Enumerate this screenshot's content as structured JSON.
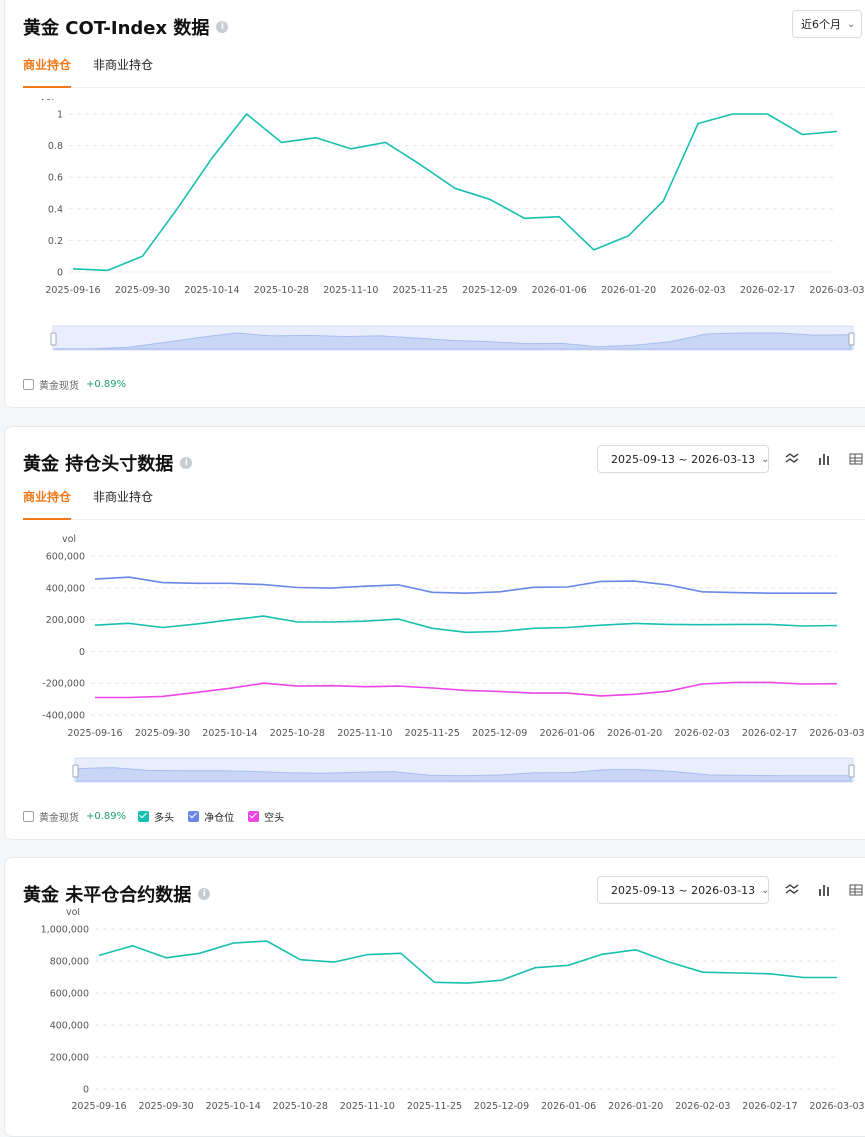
{
  "colors": {
    "long": "#17c0b0",
    "net": "#6a87e8",
    "short": "#ee44e8",
    "accent": "#f07a1a",
    "up": "#1aa36b"
  },
  "card1": {
    "title": "黄金 COT-Index 数据",
    "period_label": "近6个月",
    "tabs": [
      "商业持仓",
      "非商业持仓"
    ],
    "active_tab": 0,
    "legend": {
      "spot_label": "黄金现货",
      "spot_change": "+0.89%"
    }
  },
  "card2": {
    "title": "黄金 持仓头寸数据",
    "date_range": "2025-09-13 ~ 2026-03-13",
    "tabs": [
      "商业持仓",
      "非商业持仓"
    ],
    "active_tab": 0,
    "toolbar": [
      "line-chart-icon",
      "bar-chart-icon",
      "table-icon"
    ],
    "legend": {
      "spot_label": "黄金现货",
      "spot_change": "+0.89%",
      "series": [
        "多头",
        "净仓位",
        "空头"
      ]
    }
  },
  "card3": {
    "title": "黄金 未平仓合约数据",
    "date_range": "2025-09-13 ~ 2026-03-13",
    "toolbar": [
      "line-chart-icon",
      "bar-chart-icon",
      "table-icon"
    ]
  },
  "chart_data": [
    {
      "type": "line",
      "ylabel": "vol",
      "ylim": [
        0,
        1
      ],
      "yticks": [
        "0",
        "0.2",
        "0.4",
        "0.6",
        "0.8",
        "1"
      ],
      "x_ticks": [
        "2025-09-16",
        "2025-09-30",
        "2025-10-14",
        "2025-10-28",
        "2025-11-10",
        "2025-11-25",
        "2025-12-09",
        "2026-01-06",
        "2026-01-20",
        "2026-02-03",
        "2026-02-17",
        "2026-03-03"
      ],
      "grid": true,
      "series": [
        {
          "color": "#17c0b0",
          "values": [
            0.02,
            0.01,
            0.1,
            0.4,
            0.72,
            1.0,
            0.82,
            0.85,
            0.78,
            0.82,
            0.68,
            0.53,
            0.46,
            0.34,
            0.35,
            0.14,
            0.23,
            0.45,
            0.94,
            1.0,
            1.0,
            0.87,
            0.89
          ]
        }
      ]
    },
    {
      "type": "line",
      "ylabel": "vol",
      "ylim": [
        -400000,
        600000
      ],
      "yticks": [
        "-400,000",
        "-200,000",
        "0",
        "200,000",
        "400,000",
        "600,000"
      ],
      "x_ticks": [
        "2025-09-16",
        "2025-09-30",
        "2025-10-14",
        "2025-10-28",
        "2025-11-10",
        "2025-11-25",
        "2025-12-09",
        "2026-01-06",
        "2026-01-20",
        "2026-02-03",
        "2026-02-17",
        "2026-03-03"
      ],
      "grid": true,
      "series": [
        {
          "name": "净仓位",
          "color": "#6a87e8",
          "values": [
            455000,
            467000,
            433000,
            428000,
            428000,
            420000,
            402000,
            398000,
            410000,
            418000,
            372000,
            366000,
            375000,
            403000,
            405000,
            440000,
            442000,
            418000,
            375000,
            370000,
            366000,
            366000,
            366000
          ]
        },
        {
          "name": "多头",
          "color": "#17c0b0",
          "values": [
            165000,
            177000,
            150000,
            172000,
            198000,
            222000,
            185000,
            185000,
            190000,
            203000,
            145000,
            120000,
            125000,
            145000,
            150000,
            165000,
            176000,
            170000,
            168000,
            170000,
            170000,
            160000,
            163000
          ]
        },
        {
          "name": "空头",
          "color": "#ee44e8",
          "values": [
            -290000,
            -290000,
            -283000,
            -258000,
            -232000,
            -200000,
            -218000,
            -216000,
            -222000,
            -218000,
            -230000,
            -245000,
            -252000,
            -262000,
            -262000,
            -280000,
            -270000,
            -250000,
            -205000,
            -195000,
            -195000,
            -205000,
            -203000
          ]
        }
      ]
    },
    {
      "type": "line",
      "ylabel": "vol",
      "ylim": [
        0,
        1000000
      ],
      "yticks": [
        "0",
        "200,000",
        "400,000",
        "600,000",
        "800,000",
        "1,000,000"
      ],
      "x_ticks": [
        "2025-09-16",
        "2025-09-30",
        "2025-10-14",
        "2025-10-28",
        "2025-11-10",
        "2025-11-25",
        "2025-12-09",
        "2026-01-06",
        "2026-01-20",
        "2026-02-03",
        "2026-02-17",
        "2026-03-03"
      ],
      "grid": true,
      "series": [
        {
          "color": "#17c0b0",
          "values": [
            835000,
            895000,
            820000,
            848000,
            912000,
            925000,
            808000,
            793000,
            840000,
            848000,
            667000,
            662000,
            680000,
            758000,
            773000,
            842000,
            870000,
            793000,
            730000,
            725000,
            720000,
            697000,
            697000
          ]
        }
      ]
    }
  ]
}
